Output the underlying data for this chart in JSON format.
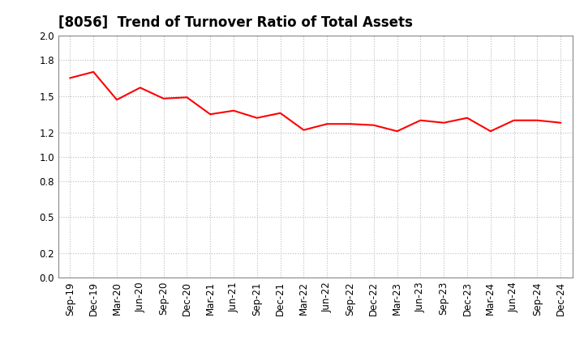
{
  "title": "[8056]  Trend of Turnover Ratio of Total Assets",
  "x_labels": [
    "Sep-19",
    "Dec-19",
    "Mar-20",
    "Jun-20",
    "Sep-20",
    "Dec-20",
    "Mar-21",
    "Jun-21",
    "Sep-21",
    "Dec-21",
    "Mar-22",
    "Jun-22",
    "Sep-22",
    "Dec-22",
    "Mar-23",
    "Jun-23",
    "Sep-23",
    "Dec-23",
    "Mar-24",
    "Jun-24",
    "Sep-24",
    "Dec-24"
  ],
  "values": [
    1.65,
    1.7,
    1.47,
    1.57,
    1.48,
    1.49,
    1.35,
    1.38,
    1.32,
    1.36,
    1.22,
    1.27,
    1.27,
    1.26,
    1.21,
    1.3,
    1.28,
    1.32,
    1.21,
    1.3,
    1.3,
    1.28
  ],
  "line_color": "#FF0000",
  "line_width": 1.5,
  "background_color": "#ffffff",
  "plot_bg_color": "#ffffff",
  "grid_color": "#bbbbbb",
  "ylim": [
    0.0,
    2.0
  ],
  "yticks": [
    0.0,
    0.2,
    0.5,
    0.8,
    1.0,
    1.2,
    1.5,
    1.8,
    2.0
  ],
  "title_fontsize": 12,
  "tick_fontsize": 8.5,
  "title_color": "#000000"
}
